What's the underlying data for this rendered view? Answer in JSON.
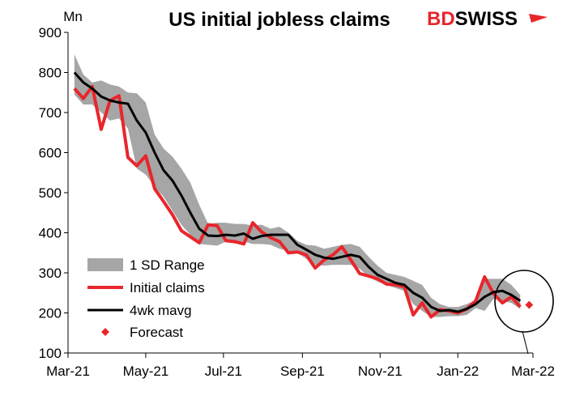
{
  "chart_data": {
    "type": "line",
    "title": "US initial jobless claims",
    "ylabel": "Mn",
    "ylim": [
      100,
      900
    ],
    "yticks": [
      100,
      200,
      300,
      400,
      500,
      600,
      700,
      800,
      900
    ],
    "xtick_labels": [
      "Mar-21",
      "May-21",
      "Jul-21",
      "Sep-21",
      "Nov-21",
      "Jan-22",
      "Mar-22"
    ],
    "x": [
      "2021-03-06",
      "2021-03-13",
      "2021-03-20",
      "2021-03-27",
      "2021-04-03",
      "2021-04-10",
      "2021-04-17",
      "2021-04-24",
      "2021-05-01",
      "2021-05-08",
      "2021-05-15",
      "2021-05-22",
      "2021-05-29",
      "2021-06-05",
      "2021-06-12",
      "2021-06-19",
      "2021-06-26",
      "2021-07-03",
      "2021-07-10",
      "2021-07-17",
      "2021-07-24",
      "2021-07-31",
      "2021-08-07",
      "2021-08-14",
      "2021-08-21",
      "2021-08-28",
      "2021-09-04",
      "2021-09-11",
      "2021-09-18",
      "2021-09-25",
      "2021-10-02",
      "2021-10-09",
      "2021-10-16",
      "2021-10-23",
      "2021-10-30",
      "2021-11-06",
      "2021-11-13",
      "2021-11-20",
      "2021-11-27",
      "2021-12-04",
      "2021-12-11",
      "2021-12-18",
      "2021-12-25",
      "2022-01-01",
      "2022-01-08",
      "2022-01-15",
      "2022-01-22",
      "2022-01-29",
      "2022-02-05",
      "2022-02-12",
      "2022-02-19"
    ],
    "series": [
      {
        "name": "Initial claims",
        "color": "#e8262c",
        "values": [
          760,
          735,
          765,
          658,
          730,
          742,
          588,
          567,
          592,
          510,
          478,
          445,
          405,
          390,
          375,
          420,
          418,
          380,
          378,
          372,
          425,
          402,
          388,
          378,
          350,
          352,
          345,
          312,
          332,
          345,
          365,
          332,
          298,
          292,
          285,
          272,
          270,
          265,
          195,
          225,
          190,
          208,
          205,
          200,
          210,
          230,
          290,
          248,
          225,
          240,
          215
        ]
      },
      {
        "name": "4wk mavg",
        "color": "#000000",
        "values": [
          800,
          775,
          760,
          740,
          730,
          725,
          722,
          680,
          650,
          600,
          556,
          530,
          493,
          450,
          410,
          393,
          392,
          395,
          393,
          398,
          385,
          392,
          395,
          395,
          395,
          370,
          358,
          345,
          338,
          335,
          340,
          345,
          340,
          315,
          295,
          285,
          275,
          270,
          250,
          238,
          215,
          205,
          207,
          203,
          210,
          222,
          240,
          252,
          255,
          245,
          230
        ]
      },
      {
        "name": "1 SD Range",
        "color": "#a6a6a6",
        "upper": [
          845,
          795,
          775,
          780,
          770,
          765,
          750,
          748,
          725,
          645,
          610,
          590,
          560,
          525,
          470,
          422,
          425,
          425,
          422,
          422,
          418,
          420,
          410,
          415,
          400,
          380,
          370,
          368,
          360,
          365,
          370,
          372,
          365,
          340,
          318,
          300,
          295,
          290,
          280,
          270,
          238,
          222,
          215,
          215,
          222,
          232,
          285,
          285,
          285,
          270,
          245
        ],
        "lower": [
          745,
          720,
          720,
          700,
          680,
          685,
          660,
          560,
          545,
          515,
          490,
          455,
          420,
          395,
          372,
          370,
          368,
          378,
          373,
          378,
          372,
          372,
          370,
          360,
          355,
          350,
          335,
          320,
          318,
          320,
          320,
          320,
          310,
          290,
          278,
          270,
          262,
          255,
          222,
          205,
          190,
          190,
          192,
          192,
          195,
          212,
          205,
          235,
          230,
          225,
          210
        ]
      }
    ],
    "forecast": {
      "name": "Forecast",
      "x": "2022-02-26",
      "value": 220,
      "color": "#e8262c"
    },
    "legend": [
      "1 SD Range",
      "Initial claims",
      "4wk mavg",
      "Forecast"
    ],
    "legend_position": "bottom-left",
    "grid": false
  },
  "logo": {
    "part1": "BD",
    "part2": "SWISS",
    "part1_color": "#e8262c",
    "part2_color": "#000000"
  }
}
